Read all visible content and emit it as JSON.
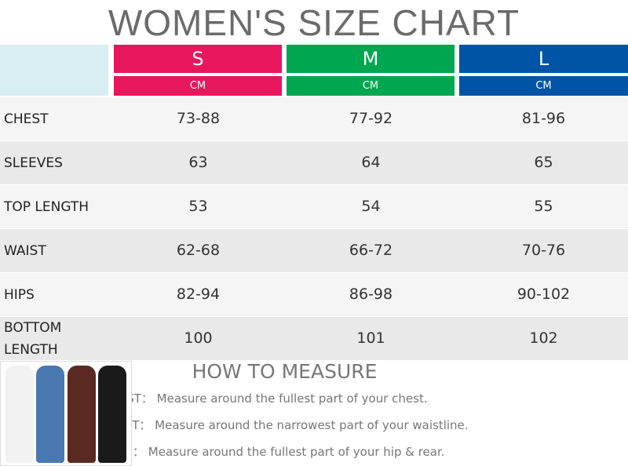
{
  "title": "WOMEN'S SIZE CHART",
  "sizes": [
    {
      "label": "S",
      "unit": "CM",
      "color": "#e8175d"
    },
    {
      "label": "M",
      "unit": "CM",
      "color": "#00a650"
    },
    {
      "label": "L",
      "unit": "CM",
      "color": "#0054a6"
    }
  ],
  "rows": [
    {
      "label": "CHEST",
      "values": [
        "73-88",
        "77-92",
        "81-96"
      ]
    },
    {
      "label": "SLEEVES",
      "values": [
        "63",
        "64",
        "65"
      ]
    },
    {
      "label": "TOP LENGTH",
      "values": [
        "53",
        "54",
        "55"
      ]
    },
    {
      "label": "WAIST",
      "values": [
        "62-68",
        "66-72",
        "70-76"
      ]
    },
    {
      "label": "HIPS",
      "values": [
        "82-94",
        "86-98",
        "90-102"
      ]
    },
    {
      "label": "BOTTOM LENGTH",
      "values": [
        "100",
        "101",
        "102"
      ]
    }
  ],
  "how_to_measure": {
    "title": "HOW TO MEASURE",
    "items": [
      "CHEST：  Measure around the fullest part of your chest.",
      "WAIST：  Measure around the narrowest part of your waistline.",
      "HIPS    ：  Measure around the fullest part of your hip & rear."
    ]
  },
  "photo_colors": [
    "#f2f2f2",
    "#4a78b0",
    "#5a2a22",
    "#1a1a1a"
  ]
}
